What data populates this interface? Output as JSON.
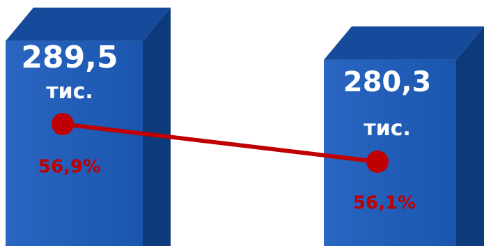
{
  "chart_data": {
    "type": "bar-line",
    "values": [
      289.5,
      280.3
    ],
    "value_labels": [
      "289,5 тис.",
      "280,3 тис."
    ],
    "color": "#1f5bb5",
    "series": [
      {
        "type": "line",
        "color": "#c00000",
        "values": [
          56.9,
          56.1
        ],
        "value_labels": [
          "56,9%",
          "56,1%"
        ]
      }
    ]
  }
}
